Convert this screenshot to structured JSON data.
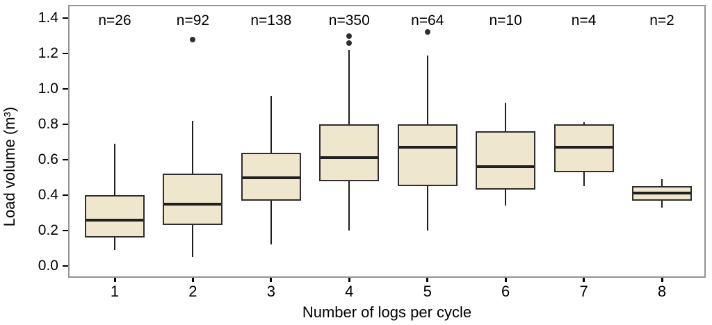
{
  "chart_data": {
    "type": "boxplot",
    "xlabel": "Number of logs per cycle",
    "ylabel": "Load volume (m³)",
    "ylim": [
      0.0,
      1.4
    ],
    "yticks": [
      0.0,
      0.2,
      0.4,
      0.6,
      0.8,
      1.0,
      1.2,
      1.4
    ],
    "categories": [
      "1",
      "2",
      "3",
      "4",
      "5",
      "6",
      "7",
      "8"
    ],
    "n_labels": [
      "n=26",
      "n=92",
      "n=138",
      "n=350",
      "n=64",
      "n=10",
      "n=4",
      "n=2"
    ],
    "grid": "off",
    "legend": "none",
    "series": [
      {
        "category": "1",
        "n": 26,
        "whisker_low": 0.09,
        "q1": 0.16,
        "median": 0.26,
        "q3": 0.4,
        "whisker_high": 0.69,
        "outliers": []
      },
      {
        "category": "2",
        "n": 92,
        "whisker_low": 0.05,
        "q1": 0.23,
        "median": 0.35,
        "q3": 0.52,
        "whisker_high": 0.82,
        "outliers": [
          1.28
        ]
      },
      {
        "category": "3",
        "n": 138,
        "whisker_low": 0.12,
        "q1": 0.37,
        "median": 0.5,
        "q3": 0.64,
        "whisker_high": 0.96,
        "outliers": []
      },
      {
        "category": "4",
        "n": 350,
        "whisker_low": 0.2,
        "q1": 0.48,
        "median": 0.61,
        "q3": 0.8,
        "whisker_high": 1.22,
        "outliers": [
          1.26,
          1.3
        ]
      },
      {
        "category": "5",
        "n": 64,
        "whisker_low": 0.2,
        "q1": 0.45,
        "median": 0.67,
        "q3": 0.8,
        "whisker_high": 1.19,
        "outliers": [
          1.32
        ]
      },
      {
        "category": "6",
        "n": 10,
        "whisker_low": 0.34,
        "q1": 0.43,
        "median": 0.56,
        "q3": 0.76,
        "whisker_high": 0.92,
        "outliers": []
      },
      {
        "category": "7",
        "n": 4,
        "whisker_low": 0.45,
        "q1": 0.53,
        "median": 0.67,
        "q3": 0.8,
        "whisker_high": 0.81,
        "outliers": []
      },
      {
        "category": "8",
        "n": 2,
        "whisker_low": 0.33,
        "q1": 0.37,
        "median": 0.41,
        "q3": 0.45,
        "whisker_high": 0.49,
        "outliers": []
      }
    ],
    "colors": {
      "box_fill": "#EFE7CD",
      "box_border": "#2E2E2E",
      "median": "#1F1F1F",
      "whisker": "#1F1F1F",
      "outlier": "#2E2E2E",
      "panel_border": "#949494",
      "text": "#000000"
    }
  }
}
